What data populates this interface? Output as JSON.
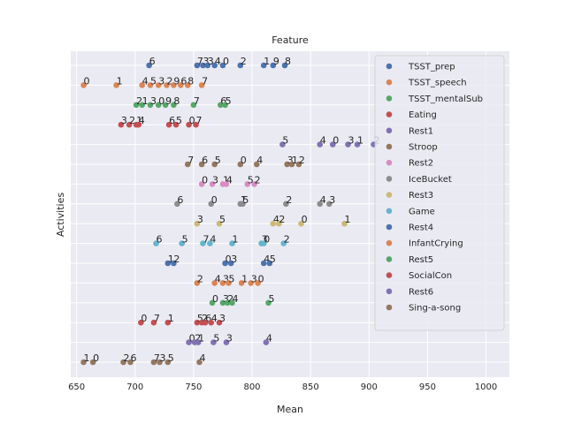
{
  "chart_data": {
    "type": "scatter",
    "title": "Feature",
    "xlabel": "Mean",
    "ylabel": "Activities",
    "xlim": [
      645,
      1020
    ],
    "xticks": [
      650,
      700,
      750,
      800,
      850,
      900,
      950,
      1000
    ],
    "grid": true,
    "legend_position": "top-right",
    "background": "#eaeaf2",
    "rows": [
      {
        "name": "TSST_prep",
        "color": "#4c72b0",
        "points": [
          [
            712,
            "6"
          ],
          [
            753,
            "7"
          ],
          [
            758,
            "3"
          ],
          [
            762,
            "3"
          ],
          [
            768,
            "4"
          ],
          [
            775,
            "0"
          ],
          [
            790,
            "2"
          ],
          [
            810,
            "1"
          ],
          [
            818,
            "9"
          ],
          [
            828,
            "8"
          ]
        ]
      },
      {
        "name": "TSST_speech",
        "color": "#dd8452",
        "points": [
          [
            656,
            "0"
          ],
          [
            684,
            "1"
          ],
          [
            706,
            "4"
          ],
          [
            713,
            "5"
          ],
          [
            720,
            "3"
          ],
          [
            727,
            "2"
          ],
          [
            733,
            "9"
          ],
          [
            739,
            "6"
          ],
          [
            745,
            "8"
          ],
          [
            757,
            "7"
          ]
        ]
      },
      {
        "name": "TSST_mentalSub",
        "color": "#55a868",
        "points": [
          [
            701,
            "2"
          ],
          [
            706,
            "1"
          ],
          [
            713,
            "3"
          ],
          [
            720,
            "0"
          ],
          [
            726,
            "9"
          ],
          [
            733,
            "8"
          ],
          [
            750,
            "7"
          ],
          [
            773,
            "6"
          ],
          [
            777,
            "5"
          ]
        ]
      },
      {
        "name": "Eating",
        "color": "#c44e52",
        "points": [
          [
            688,
            "3"
          ],
          [
            695,
            "2"
          ],
          [
            701,
            "1"
          ],
          [
            703,
            "4"
          ],
          [
            729,
            "6"
          ],
          [
            735,
            "5"
          ],
          [
            746,
            "0"
          ],
          [
            752,
            "7"
          ]
        ]
      },
      {
        "name": "Rest1",
        "color": "#8172b3",
        "points": [
          [
            826,
            "5"
          ],
          [
            858,
            "4"
          ],
          [
            869,
            "0"
          ],
          [
            882,
            "3"
          ],
          [
            890,
            "1"
          ],
          [
            904,
            "2"
          ]
        ]
      },
      {
        "name": "Stroop",
        "color": "#937860",
        "points": [
          [
            745,
            "7"
          ],
          [
            757,
            "6"
          ],
          [
            768,
            "5"
          ],
          [
            790,
            "0"
          ],
          [
            804,
            "4"
          ],
          [
            830,
            "3"
          ],
          [
            834,
            "1"
          ],
          [
            840,
            "2"
          ]
        ]
      },
      {
        "name": "Rest2",
        "color": "#da8bc3",
        "points": [
          [
            757,
            "0"
          ],
          [
            766,
            "3"
          ],
          [
            775,
            "1"
          ],
          [
            778,
            "4"
          ],
          [
            796,
            "5"
          ],
          [
            802,
            "2"
          ]
        ]
      },
      {
        "name": "IceBucket",
        "color": "#8c8c8c",
        "points": [
          [
            736,
            "6"
          ],
          [
            765,
            "0"
          ],
          [
            790,
            "1"
          ],
          [
            792,
            "5"
          ],
          [
            829,
            "2"
          ],
          [
            858,
            "4"
          ],
          [
            866,
            "3"
          ]
        ]
      },
      {
        "name": "Rest3",
        "color": "#ccb974",
        "points": [
          [
            753,
            "3"
          ],
          [
            772,
            "5"
          ],
          [
            818,
            "4"
          ],
          [
            823,
            "2"
          ],
          [
            842,
            "0"
          ],
          [
            879,
            "1"
          ]
        ]
      },
      {
        "name": "Game",
        "color": "#64b5cd",
        "points": [
          [
            718,
            "6"
          ],
          [
            740,
            "5"
          ],
          [
            758,
            "7"
          ],
          [
            764,
            "4"
          ],
          [
            783,
            "1"
          ],
          [
            808,
            "3"
          ],
          [
            810,
            "0"
          ],
          [
            827,
            "2"
          ]
        ]
      },
      {
        "name": "Rest4",
        "color": "#4c72b0",
        "points": [
          [
            728,
            "1"
          ],
          [
            733,
            "2"
          ],
          [
            777,
            "0"
          ],
          [
            782,
            "3"
          ],
          [
            810,
            "4"
          ],
          [
            815,
            "5"
          ]
        ]
      },
      {
        "name": "InfantCrying",
        "color": "#dd8452",
        "points": [
          [
            753,
            "2"
          ],
          [
            768,
            "4"
          ],
          [
            775,
            "3"
          ],
          [
            780,
            "5"
          ],
          [
            791,
            "1"
          ],
          [
            799,
            "3"
          ],
          [
            805,
            "0"
          ]
        ]
      },
      {
        "name": "Rest5",
        "color": "#55a868",
        "points": [
          [
            766,
            "0"
          ],
          [
            775,
            "3"
          ],
          [
            779,
            "2"
          ],
          [
            783,
            "4"
          ],
          [
            814,
            "5"
          ]
        ]
      },
      {
        "name": "SocialCon",
        "color": "#c44e52",
        "points": [
          [
            705,
            "0"
          ],
          [
            716,
            "7"
          ],
          [
            728,
            "1"
          ],
          [
            753,
            "5"
          ],
          [
            757,
            "2"
          ],
          [
            760,
            "6"
          ],
          [
            765,
            "4"
          ],
          [
            772,
            "3"
          ]
        ]
      },
      {
        "name": "Rest6",
        "color": "#8172b3",
        "points": [
          [
            746,
            "0"
          ],
          [
            751,
            "2"
          ],
          [
            754,
            "1"
          ],
          [
            767,
            "5"
          ],
          [
            778,
            "3"
          ],
          [
            812,
            "4"
          ]
        ]
      },
      {
        "name": "Sing-a-song",
        "color": "#937860",
        "points": [
          [
            656,
            "1"
          ],
          [
            664,
            "0"
          ],
          [
            690,
            "2"
          ],
          [
            696,
            "6"
          ],
          [
            716,
            "7"
          ],
          [
            721,
            "3"
          ],
          [
            728,
            "5"
          ],
          [
            755,
            "4"
          ]
        ]
      }
    ]
  }
}
